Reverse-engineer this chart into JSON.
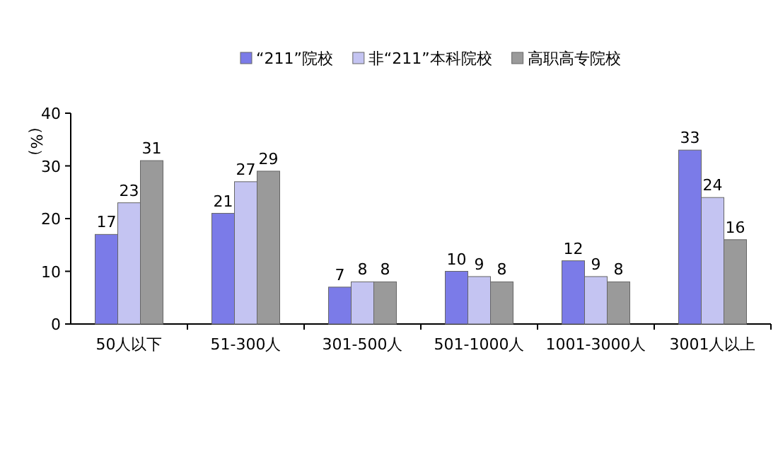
{
  "chart_data": {
    "type": "bar",
    "ylabel": "（%）",
    "categories": [
      "50人以下",
      "51-300人",
      "301-500人",
      "501-1000人",
      "1001-3000人",
      "3001人以上"
    ],
    "series": [
      {
        "name": "“211”院校",
        "color": "#7b7be8",
        "values": [
          17,
          21,
          7,
          10,
          12,
          33
        ]
      },
      {
        "name": "非“211”本科院校",
        "color": "#c4c4f2",
        "values": [
          23,
          27,
          8,
          9,
          9,
          24
        ]
      },
      {
        "name": "高职高专院校",
        "color": "#9a9a9a",
        "values": [
          31,
          29,
          8,
          8,
          8,
          16
        ]
      }
    ],
    "ylim": [
      0,
      40
    ],
    "yticks": [
      0,
      10,
      20,
      30,
      40
    ],
    "data_labels": true,
    "legend": "top",
    "grid": false
  }
}
